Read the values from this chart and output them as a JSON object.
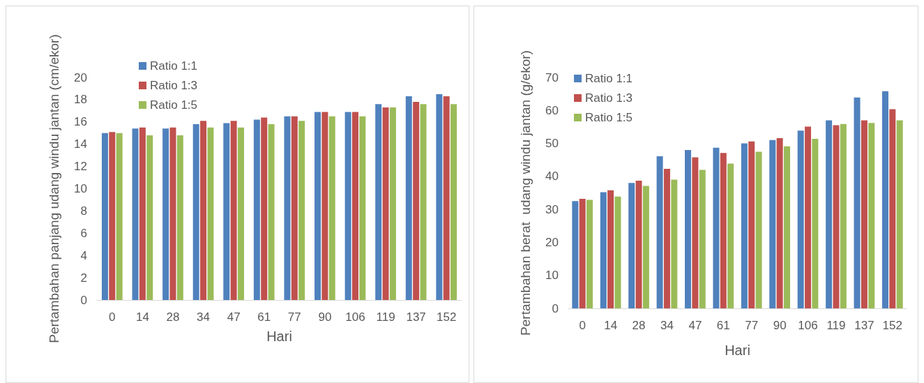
{
  "chart_data": [
    {
      "type": "bar",
      "xlabel": "Hari",
      "ylabel": "Pertambahan panjang udang windu jantan (cm/ekor)",
      "categories": [
        "0",
        "14",
        "28",
        "34",
        "47",
        "61",
        "77",
        "90",
        "106",
        "119",
        "137",
        "152"
      ],
      "series": [
        {
          "name": "Ratio 1:1",
          "color": "#4f81bd",
          "values": [
            15.0,
            15.4,
            15.4,
            15.8,
            15.9,
            16.2,
            16.5,
            16.9,
            16.9,
            17.6,
            18.3,
            18.5
          ]
        },
        {
          "name": "Ratio 1:3",
          "color": "#c0504d",
          "values": [
            15.1,
            15.5,
            15.5,
            16.1,
            16.1,
            16.4,
            16.5,
            16.9,
            16.9,
            17.3,
            17.8,
            18.3
          ]
        },
        {
          "name": "Ratio 1:5",
          "color": "#9bbb59",
          "values": [
            15.0,
            14.8,
            14.8,
            15.5,
            15.5,
            15.8,
            16.1,
            16.5,
            16.5,
            17.3,
            17.6,
            17.6
          ]
        }
      ],
      "ylim": [
        0,
        20
      ],
      "yticks": [
        0,
        2,
        4,
        6,
        8,
        10,
        12,
        14,
        16,
        18,
        20
      ],
      "grid": false,
      "legend": "top left"
    },
    {
      "type": "bar",
      "xlabel": "Hari",
      "ylabel": "Pertambahan berat  udang windu jantan (g/ekor)",
      "categories": [
        "0",
        "14",
        "28",
        "34",
        "47",
        "61",
        "77",
        "90",
        "106",
        "119",
        "137",
        "152"
      ],
      "series": [
        {
          "name": "Ratio 1:1",
          "color": "#4f81bd",
          "values": [
            32.5,
            35.2,
            38.0,
            46.1,
            48.0,
            48.7,
            50.0,
            51.0,
            53.9,
            57.0,
            63.9,
            65.8
          ]
        },
        {
          "name": "Ratio 1:3",
          "color": "#c0504d",
          "values": [
            33.2,
            35.8,
            38.7,
            42.3,
            45.8,
            47.1,
            50.6,
            51.6,
            55.1,
            55.5,
            57.0,
            60.4
          ]
        },
        {
          "name": "Ratio 1:5",
          "color": "#9bbb59",
          "values": [
            32.9,
            33.9,
            37.1,
            39.0,
            42.0,
            43.9,
            47.5,
            49.1,
            51.4,
            55.9,
            56.2,
            57.0
          ]
        }
      ],
      "ylim": [
        0,
        70
      ],
      "yticks": [
        0,
        10,
        20,
        30,
        40,
        50,
        60,
        70
      ],
      "grid": false,
      "legend": "top left"
    }
  ]
}
